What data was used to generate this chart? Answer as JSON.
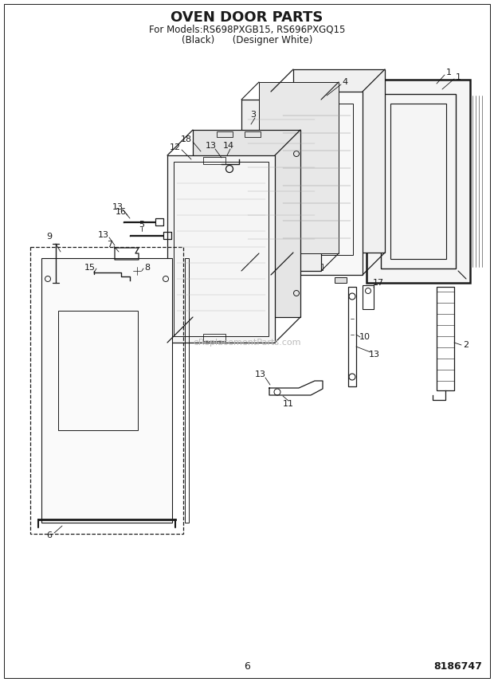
{
  "title": "OVEN DOOR PARTS",
  "subtitle1": "For Models:RS698PXGB15, RS696PXGQ15",
  "subtitle2": "(Black)      (Designer White)",
  "page_num": "6",
  "part_num": "8186747",
  "bg_color": "#ffffff",
  "lc": "#1a1a1a",
  "watermark": "eReplacementParts.com",
  "fig_w": 6.2,
  "fig_h": 8.56,
  "dpi": 100
}
